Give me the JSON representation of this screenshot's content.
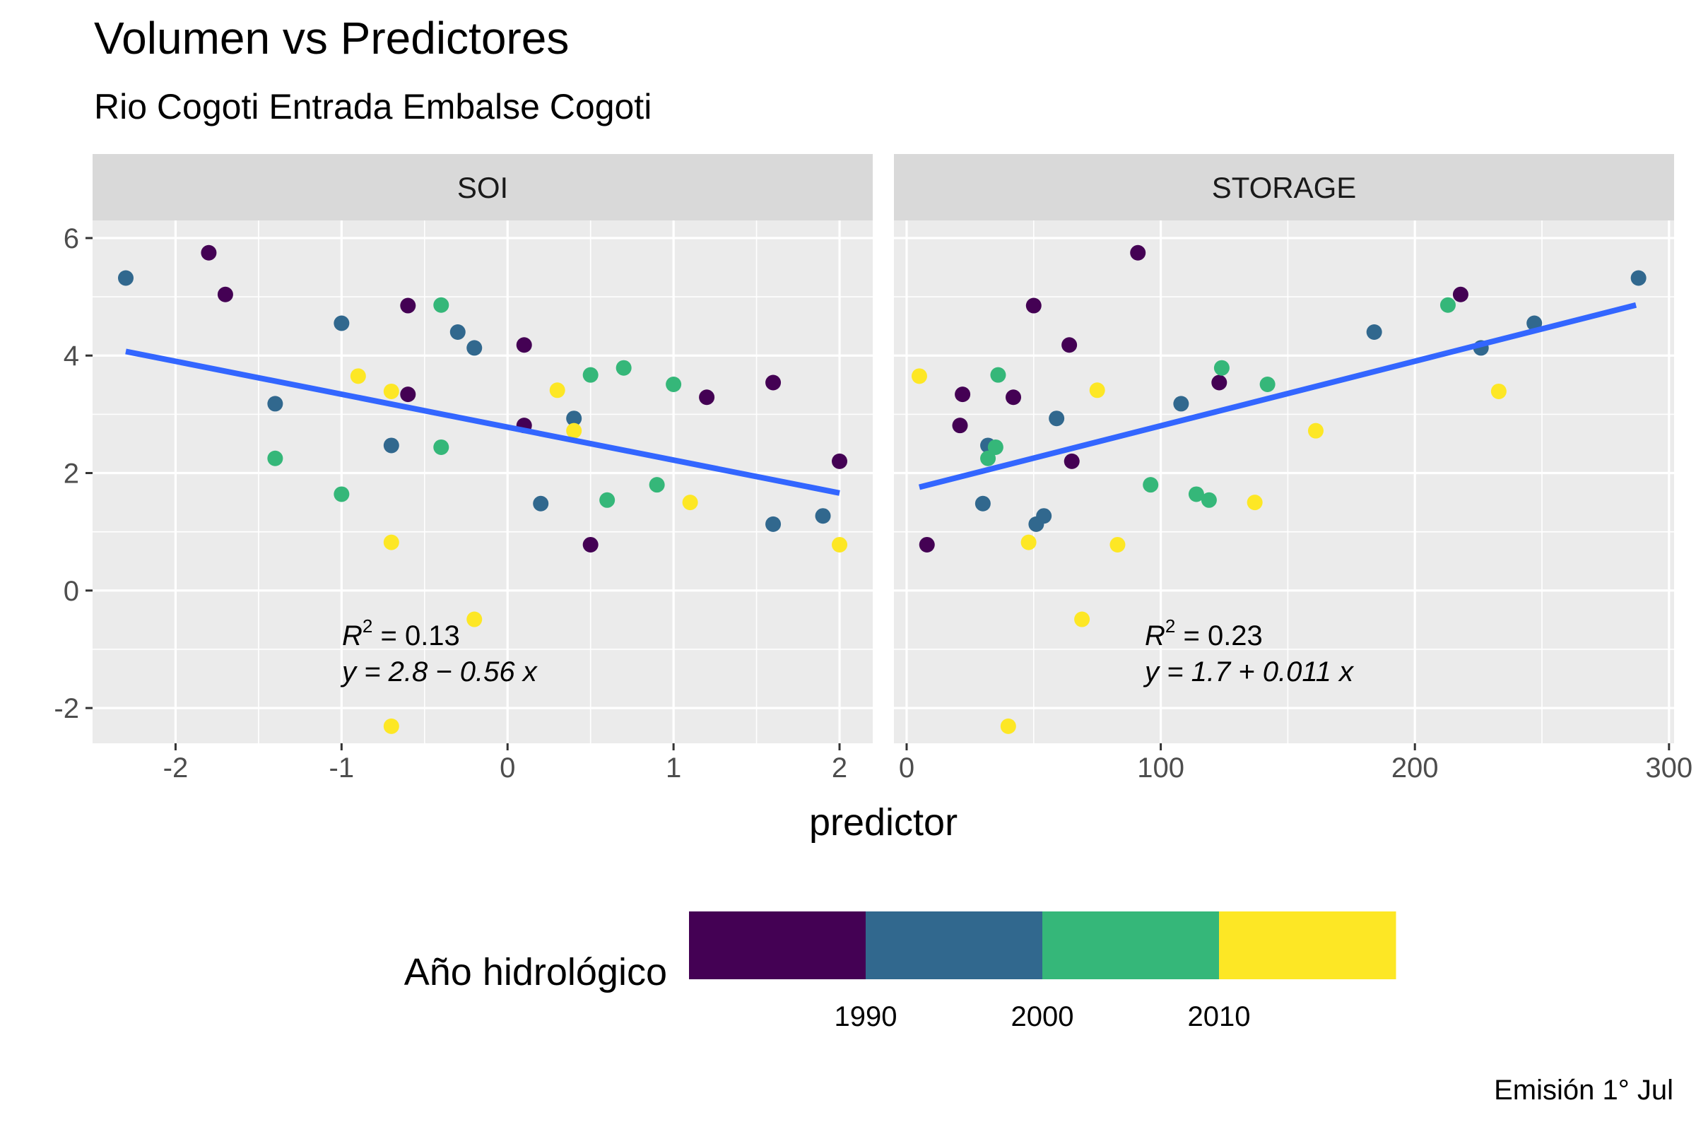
{
  "chart_data": {
    "type": "scatter",
    "title": "Volumen vs Predictores",
    "subtitle": "Rio Cogoti Entrada Embalse Cogoti",
    "xlabel": "predictor",
    "ylabel": "",
    "caption": "Emisión 1° Jul",
    "ylim": [
      -2.6,
      6.3
    ],
    "y_ticks": [
      6,
      4,
      2,
      0,
      -2
    ],
    "y_tick_labels": [
      "6",
      "4",
      "2",
      "0",
      "-2"
    ],
    "grid": true,
    "legend": {
      "title": "Año hidrológico",
      "placement": "bottom",
      "colors": [
        "#440154",
        "#31688e",
        "#35b779",
        "#fde725"
      ],
      "labels": [
        "1990",
        "2000",
        "2010"
      ]
    },
    "line_color": "#3366ff",
    "panels": [
      {
        "name": "SOI",
        "xlim": [
          -2.5,
          2.2
        ],
        "x_ticks": [
          -2,
          -1,
          0,
          1,
          2
        ],
        "x_tick_labels": [
          "-2",
          "-1",
          "0",
          "1",
          "2"
        ],
        "fit_x": [
          -2.3,
          2.0
        ],
        "fit_y": [
          4.07,
          1.66
        ],
        "annotation": {
          "r2_label": "R",
          "r2_sup": "2",
          "r2_value": " = 0.13",
          "equation": "y = 2.8 − 0.56 x"
        },
        "points": [
          {
            "x": -2.3,
            "y": 5.32,
            "color": "#31688e"
          },
          {
            "x": -1.8,
            "y": 5.75,
            "color": "#440154"
          },
          {
            "x": -1.7,
            "y": 5.04,
            "color": "#440154"
          },
          {
            "x": -1.4,
            "y": 3.18,
            "color": "#31688e"
          },
          {
            "x": -1.4,
            "y": 2.25,
            "color": "#35b779"
          },
          {
            "x": -1.0,
            "y": 4.55,
            "color": "#31688e"
          },
          {
            "x": -1.0,
            "y": 1.64,
            "color": "#35b779"
          },
          {
            "x": -0.9,
            "y": 3.65,
            "color": "#fde725"
          },
          {
            "x": -0.7,
            "y": 3.39,
            "color": "#fde725"
          },
          {
            "x": -0.7,
            "y": 2.47,
            "color": "#31688e"
          },
          {
            "x": -0.7,
            "y": 0.82,
            "color": "#fde725"
          },
          {
            "x": -0.7,
            "y": -2.31,
            "color": "#fde725"
          },
          {
            "x": -0.6,
            "y": 4.85,
            "color": "#440154"
          },
          {
            "x": -0.6,
            "y": 3.34,
            "color": "#440154"
          },
          {
            "x": -0.4,
            "y": 4.86,
            "color": "#35b779"
          },
          {
            "x": -0.4,
            "y": 2.44,
            "color": "#35b779"
          },
          {
            "x": -0.3,
            "y": 4.4,
            "color": "#31688e"
          },
          {
            "x": -0.2,
            "y": 4.13,
            "color": "#31688e"
          },
          {
            "x": -0.2,
            "y": -0.49,
            "color": "#fde725"
          },
          {
            "x": 0.1,
            "y": 4.18,
            "color": "#440154"
          },
          {
            "x": 0.1,
            "y": 2.81,
            "color": "#440154"
          },
          {
            "x": 0.2,
            "y": 1.48,
            "color": "#31688e"
          },
          {
            "x": 0.3,
            "y": 3.41,
            "color": "#fde725"
          },
          {
            "x": 0.4,
            "y": 2.93,
            "color": "#31688e"
          },
          {
            "x": 0.4,
            "y": 2.72,
            "color": "#fde725"
          },
          {
            "x": 0.5,
            "y": 3.67,
            "color": "#35b779"
          },
          {
            "x": 0.5,
            "y": 0.78,
            "color": "#440154"
          },
          {
            "x": 0.6,
            "y": 1.54,
            "color": "#35b779"
          },
          {
            "x": 0.7,
            "y": 3.79,
            "color": "#35b779"
          },
          {
            "x": 0.9,
            "y": 1.8,
            "color": "#35b779"
          },
          {
            "x": 1.0,
            "y": 3.51,
            "color": "#35b779"
          },
          {
            "x": 1.1,
            "y": 1.5,
            "color": "#fde725"
          },
          {
            "x": 1.2,
            "y": 3.29,
            "color": "#440154"
          },
          {
            "x": 1.6,
            "y": 3.54,
            "color": "#440154"
          },
          {
            "x": 1.6,
            "y": 1.13,
            "color": "#31688e"
          },
          {
            "x": 1.9,
            "y": 1.27,
            "color": "#31688e"
          },
          {
            "x": 2.0,
            "y": 2.2,
            "color": "#440154"
          },
          {
            "x": 2.0,
            "y": 0.78,
            "color": "#fde725"
          }
        ]
      },
      {
        "name": "STORAGE",
        "xlim": [
          -5,
          302
        ],
        "x_ticks": [
          0,
          100,
          200,
          300
        ],
        "x_tick_labels": [
          "0",
          "100",
          "200",
          "300"
        ],
        "fit_x": [
          5,
          287
        ],
        "fit_y": [
          1.76,
          4.86
        ],
        "annotation": {
          "r2_label": "R",
          "r2_sup": "2",
          "r2_value": " = 0.23",
          "equation": "y = 1.7 + 0.011 x"
        },
        "points": [
          {
            "x": 5,
            "y": 3.65,
            "color": "#fde725"
          },
          {
            "x": 8,
            "y": 0.78,
            "color": "#440154"
          },
          {
            "x": 21,
            "y": 2.81,
            "color": "#440154"
          },
          {
            "x": 22,
            "y": 3.34,
            "color": "#440154"
          },
          {
            "x": 30,
            "y": 1.48,
            "color": "#31688e"
          },
          {
            "x": 32,
            "y": 2.47,
            "color": "#31688e"
          },
          {
            "x": 32,
            "y": 2.25,
            "color": "#35b779"
          },
          {
            "x": 35,
            "y": 2.44,
            "color": "#35b779"
          },
          {
            "x": 36,
            "y": 3.67,
            "color": "#35b779"
          },
          {
            "x": 40,
            "y": -2.31,
            "color": "#fde725"
          },
          {
            "x": 42,
            "y": 3.29,
            "color": "#440154"
          },
          {
            "x": 48,
            "y": 0.82,
            "color": "#fde725"
          },
          {
            "x": 50,
            "y": 4.85,
            "color": "#440154"
          },
          {
            "x": 51,
            "y": 1.13,
            "color": "#31688e"
          },
          {
            "x": 54,
            "y": 1.27,
            "color": "#31688e"
          },
          {
            "x": 59,
            "y": 2.93,
            "color": "#31688e"
          },
          {
            "x": 64,
            "y": 4.18,
            "color": "#440154"
          },
          {
            "x": 65,
            "y": 2.2,
            "color": "#440154"
          },
          {
            "x": 69,
            "y": -0.49,
            "color": "#fde725"
          },
          {
            "x": 75,
            "y": 3.41,
            "color": "#fde725"
          },
          {
            "x": 83,
            "y": 0.78,
            "color": "#fde725"
          },
          {
            "x": 91,
            "y": 5.75,
            "color": "#440154"
          },
          {
            "x": 96,
            "y": 1.8,
            "color": "#35b779"
          },
          {
            "x": 108,
            "y": 3.18,
            "color": "#31688e"
          },
          {
            "x": 114,
            "y": 1.64,
            "color": "#35b779"
          },
          {
            "x": 119,
            "y": 1.54,
            "color": "#35b779"
          },
          {
            "x": 123,
            "y": 3.54,
            "color": "#440154"
          },
          {
            "x": 124,
            "y": 3.79,
            "color": "#35b779"
          },
          {
            "x": 137,
            "y": 1.5,
            "color": "#fde725"
          },
          {
            "x": 142,
            "y": 3.51,
            "color": "#35b779"
          },
          {
            "x": 161,
            "y": 2.72,
            "color": "#fde725"
          },
          {
            "x": 184,
            "y": 4.4,
            "color": "#31688e"
          },
          {
            "x": 213,
            "y": 4.86,
            "color": "#35b779"
          },
          {
            "x": 218,
            "y": 5.04,
            "color": "#440154"
          },
          {
            "x": 226,
            "y": 4.13,
            "color": "#31688e"
          },
          {
            "x": 233,
            "y": 3.39,
            "color": "#fde725"
          },
          {
            "x": 247,
            "y": 4.55,
            "color": "#31688e"
          },
          {
            "x": 288,
            "y": 5.32,
            "color": "#31688e"
          }
        ]
      }
    ]
  }
}
